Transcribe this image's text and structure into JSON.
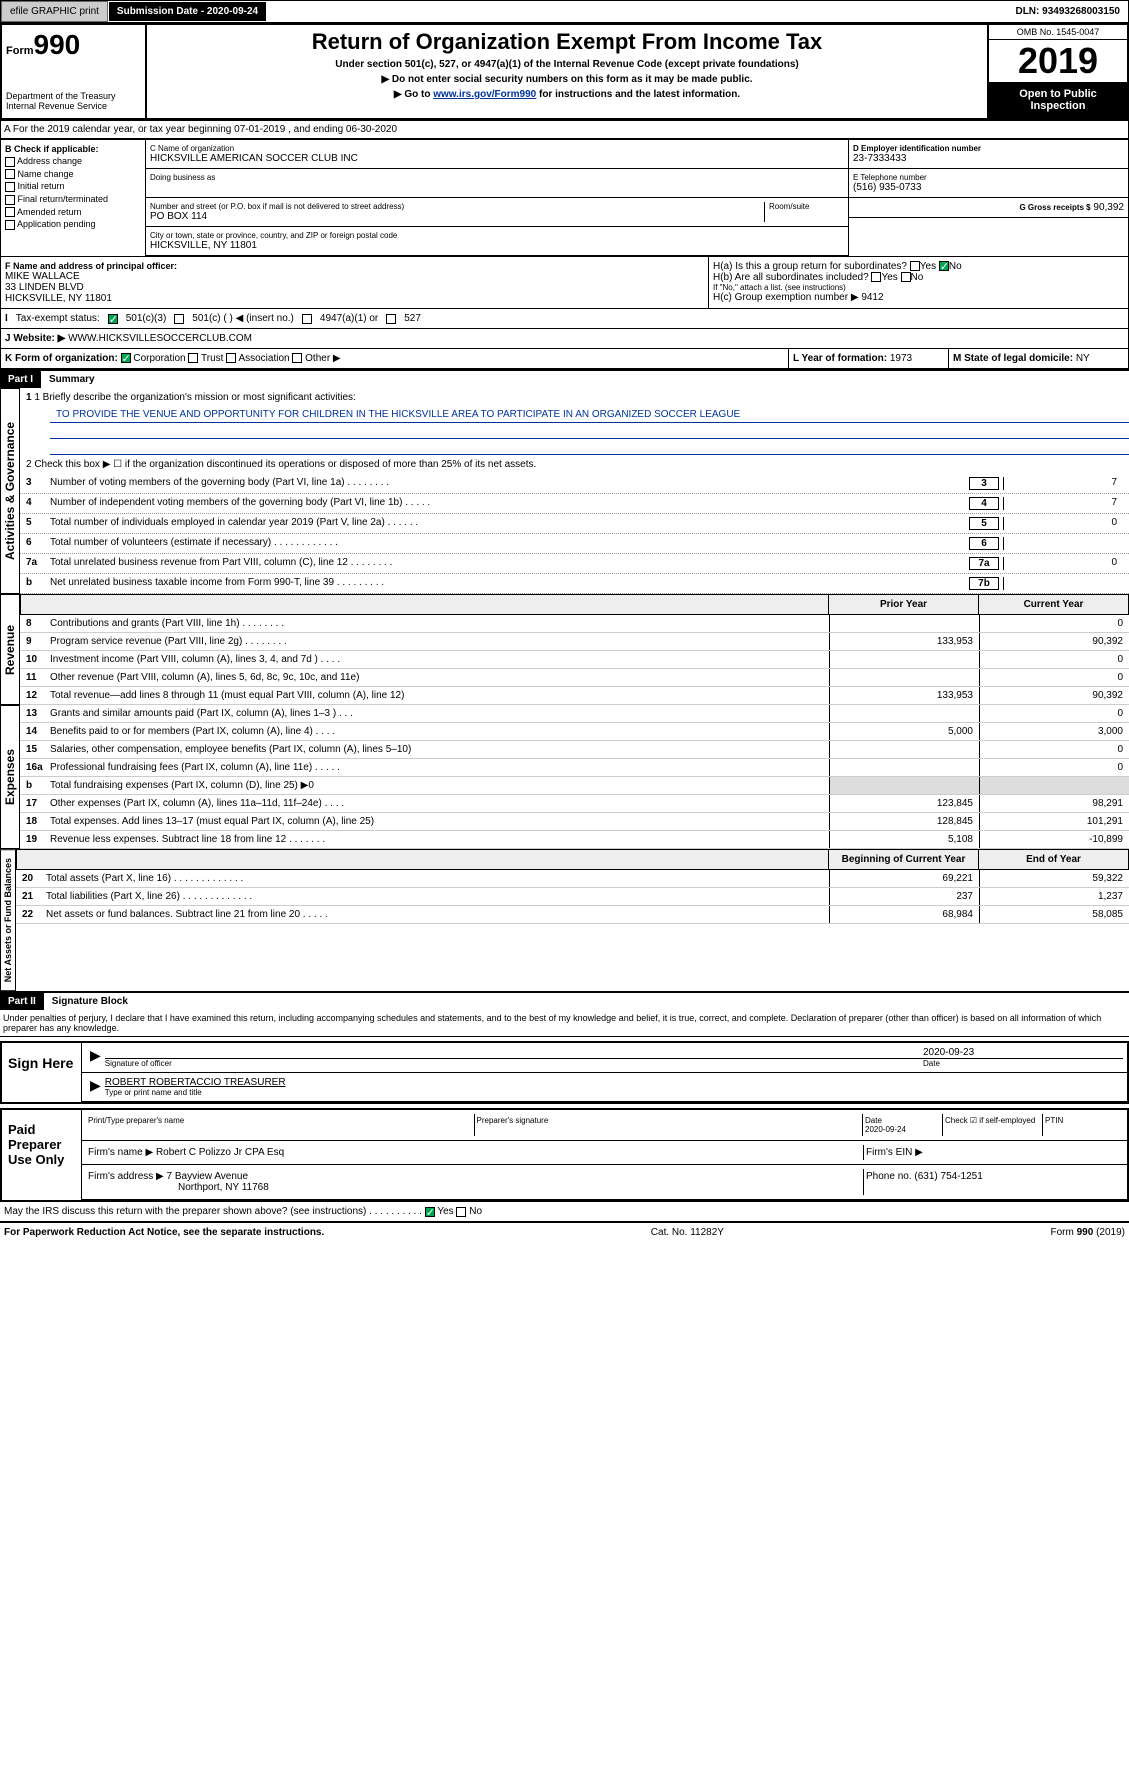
{
  "header": {
    "efile": "efile GRAPHIC print",
    "submission": "Submission Date - 2020-09-24",
    "dln": "DLN: 93493268003150"
  },
  "form": {
    "num_prefix": "Form",
    "num": "990",
    "title": "Return of Organization Exempt From Income Tax",
    "sub1": "Under section 501(c), 527, or 4947(a)(1) of the Internal Revenue Code (except private foundations)",
    "sub2": "▶ Do not enter social security numbers on this form as it may be made public.",
    "sub3_pre": "▶ Go to ",
    "sub3_link": "www.irs.gov/Form990",
    "sub3_post": " for instructions and the latest information.",
    "dept": "Department of the Treasury\nInternal Revenue Service",
    "omb": "OMB No. 1545-0047",
    "year": "2019",
    "open": "Open to Public Inspection"
  },
  "section_a": "A For the 2019 calendar year, or tax year beginning 07-01-2019   , and ending 06-30-2020",
  "section_b": {
    "label": "B Check if applicable:",
    "items": [
      "Address change",
      "Name change",
      "Initial return",
      "Final return/terminated",
      "Amended return",
      "Application pending"
    ]
  },
  "section_c": {
    "name_label": "C Name of organization",
    "name": "HICKSVILLE AMERICAN SOCCER CLUB INC",
    "dba_label": "Doing business as",
    "addr_label": "Number and street (or P.O. box if mail is not delivered to street address)",
    "addr": "PO BOX 114",
    "room_label": "Room/suite",
    "city_label": "City or town, state or province, country, and ZIP or foreign postal code",
    "city": "HICKSVILLE, NY  11801"
  },
  "section_d": {
    "ein_label": "D Employer identification number",
    "ein": "23-7333433",
    "phone_label": "E Telephone number",
    "phone": "(516) 935-0733",
    "gross_label": "G Gross receipts $",
    "gross": "90,392"
  },
  "section_f": {
    "label": "F  Name and address of principal officer:",
    "name": "MIKE WALLACE",
    "addr1": "33 LINDEN BLVD",
    "addr2": "HICKSVILLE, NY  11801"
  },
  "section_h": {
    "ha": "H(a)  Is this a group return for subordinates?",
    "hb": "H(b)  Are all subordinates included?",
    "hb_note": "If \"No,\" attach a list. (see instructions)",
    "hc": "H(c)  Group exemption number ▶",
    "hc_val": "9412",
    "yes": "Yes",
    "no": "No"
  },
  "tax_exempt": {
    "label": "Tax-exempt status:",
    "opt1": "501(c)(3)",
    "opt2": "501(c) (   ) ◀ (insert no.)",
    "opt3": "4947(a)(1) or",
    "opt4": "527"
  },
  "website": {
    "label": "Website: ▶",
    "val": "WWW.HICKSVILLESOCCERCLUB.COM"
  },
  "section_k": {
    "label": "K Form of organization:",
    "opts": [
      "Corporation",
      "Trust",
      "Association",
      "Other ▶"
    ]
  },
  "section_l": {
    "label": "L Year of formation:",
    "val": "1973"
  },
  "section_m": {
    "label": "M State of legal domicile:",
    "val": "NY"
  },
  "part1": {
    "hdr": "Part I",
    "title": "Summary",
    "vtab1": "Activities & Governance",
    "vtab2": "Revenue",
    "vtab3": "Expenses",
    "vtab4": "Net Assets or Fund Balances",
    "line1_label": "1  Briefly describe the organization's mission or most significant activities:",
    "line1_val": "TO PROVIDE THE VENUE AND OPPORTUNITY FOR CHILDREN IN THE HICKSVILLE AREA TO PARTICIPATE IN AN ORGANIZED SOCCER LEAGUE",
    "line2": "2   Check this box ▶ ☐  if the organization discontinued its operations or disposed of more than 25% of its net assets.",
    "lines_gov": [
      {
        "n": "3",
        "t": "Number of voting members of the governing body (Part VI, line 1a)  .    .    .    .    .    .    .    .",
        "box": "3",
        "v": "7"
      },
      {
        "n": "4",
        "t": "Number of independent voting members of the governing body (Part VI, line 1b)  .    .    .    .    .",
        "box": "4",
        "v": "7"
      },
      {
        "n": "5",
        "t": "Total number of individuals employed in calendar year 2019 (Part V, line 2a)  .    .    .    .    .    .",
        "box": "5",
        "v": "0"
      },
      {
        "n": "6",
        "t": "Total number of volunteers (estimate if necessary)  .    .    .    .    .    .    .    .    .    .    .    .",
        "box": "6",
        "v": ""
      },
      {
        "n": "7a",
        "t": "Total unrelated business revenue from Part VIII, column (C), line 12  .    .    .    .    .    .    .    .",
        "box": "7a",
        "v": "0"
      },
      {
        "n": "b",
        "t": "Net unrelated business taxable income from Form 990-T, line 39  .    .    .    .    .    .    .    .    .",
        "box": "7b",
        "v": ""
      }
    ],
    "col_prior": "Prior Year",
    "col_curr": "Current Year",
    "col_begin": "Beginning of Current Year",
    "col_end": "End of Year",
    "lines_rev": [
      {
        "n": "8",
        "t": "Contributions and grants (Part VIII, line 1h)  .    .    .    .    .    .    .    .",
        "p": "",
        "c": "0"
      },
      {
        "n": "9",
        "t": "Program service revenue (Part VIII, line 2g)  .    .    .    .    .    .    .    .",
        "p": "133,953",
        "c": "90,392"
      },
      {
        "n": "10",
        "t": "Investment income (Part VIII, column (A), lines 3, 4, and 7d )  .    .    .    .",
        "p": "",
        "c": "0"
      },
      {
        "n": "11",
        "t": "Other revenue (Part VIII, column (A), lines 5, 6d, 8c, 9c, 10c, and 11e)",
        "p": "",
        "c": "0"
      },
      {
        "n": "12",
        "t": "Total revenue—add lines 8 through 11 (must equal Part VIII, column (A), line 12)",
        "p": "133,953",
        "c": "90,392"
      }
    ],
    "lines_exp": [
      {
        "n": "13",
        "t": "Grants and similar amounts paid (Part IX, column (A), lines 1–3 )  .    .    .",
        "p": "",
        "c": "0"
      },
      {
        "n": "14",
        "t": "Benefits paid to or for members (Part IX, column (A), line 4)  .    .    .    .",
        "p": "5,000",
        "c": "3,000"
      },
      {
        "n": "15",
        "t": "Salaries, other compensation, employee benefits (Part IX, column (A), lines 5–10)",
        "p": "",
        "c": "0"
      },
      {
        "n": "16a",
        "t": "Professional fundraising fees (Part IX, column (A), line 11e)  .    .    .    .    .",
        "p": "",
        "c": "0"
      },
      {
        "n": "b",
        "t": "Total fundraising expenses (Part IX, column (D), line 25) ▶0",
        "p": "gray",
        "c": "gray"
      },
      {
        "n": "17",
        "t": "Other expenses (Part IX, column (A), lines 11a–11d, 11f–24e)  .    .    .    .",
        "p": "123,845",
        "c": "98,291"
      },
      {
        "n": "18",
        "t": "Total expenses. Add lines 13–17 (must equal Part IX, column (A), line 25)",
        "p": "128,845",
        "c": "101,291"
      },
      {
        "n": "19",
        "t": "Revenue less expenses. Subtract line 18 from line 12  .    .    .    .    .    .    .",
        "p": "5,108",
        "c": "-10,899"
      }
    ],
    "lines_net": [
      {
        "n": "20",
        "t": "Total assets (Part X, line 16)  .    .    .    .    .    .    .    .    .    .    .    .    .",
        "p": "69,221",
        "c": "59,322"
      },
      {
        "n": "21",
        "t": "Total liabilities (Part X, line 26)  .    .    .    .    .    .    .    .    .    .    .    .    .",
        "p": "237",
        "c": "1,237"
      },
      {
        "n": "22",
        "t": "Net assets or fund balances. Subtract line 21 from line 20  .    .    .    .    .",
        "p": "68,984",
        "c": "58,085"
      }
    ]
  },
  "part2": {
    "hdr": "Part II",
    "title": "Signature Block",
    "perjury": "Under penalties of perjury, I declare that I have examined this return, including accompanying schedules and statements, and to the best of my knowledge and belief, it is true, correct, and complete. Declaration of preparer (other than officer) is based on all information of which preparer has any knowledge."
  },
  "sign": {
    "label": "Sign Here",
    "sig_label": "Signature of officer",
    "date": "2020-09-23",
    "date_label": "Date",
    "name": "ROBERT ROBERTACCIO  TREASURER",
    "name_label": "Type or print name and title"
  },
  "preparer": {
    "label": "Paid Preparer Use Only",
    "col1": "Print/Type preparer's name",
    "col2": "Preparer's signature",
    "col3": "Date",
    "col3_val": "2020-09-24",
    "col4": "Check ☑ if self-employed",
    "col5": "PTIN",
    "firm_label": "Firm's name    ▶",
    "firm": "Robert C Polizzo Jr CPA Esq",
    "firm_ein": "Firm's EIN ▶",
    "addr_label": "Firm's address ▶",
    "addr": "7 Bayview Avenue",
    "addr2": "Northport, NY  11768",
    "phone_label": "Phone no.",
    "phone": "(631) 754-1251"
  },
  "discuss": "May the IRS discuss this return with the preparer shown above? (see instructions)    .    .    .    .    .    .    .    .    .    .",
  "footer": {
    "left": "For Paperwork Reduction Act Notice, see the separate instructions.",
    "mid": "Cat. No. 11282Y",
    "right": "Form 990 (2019)"
  }
}
